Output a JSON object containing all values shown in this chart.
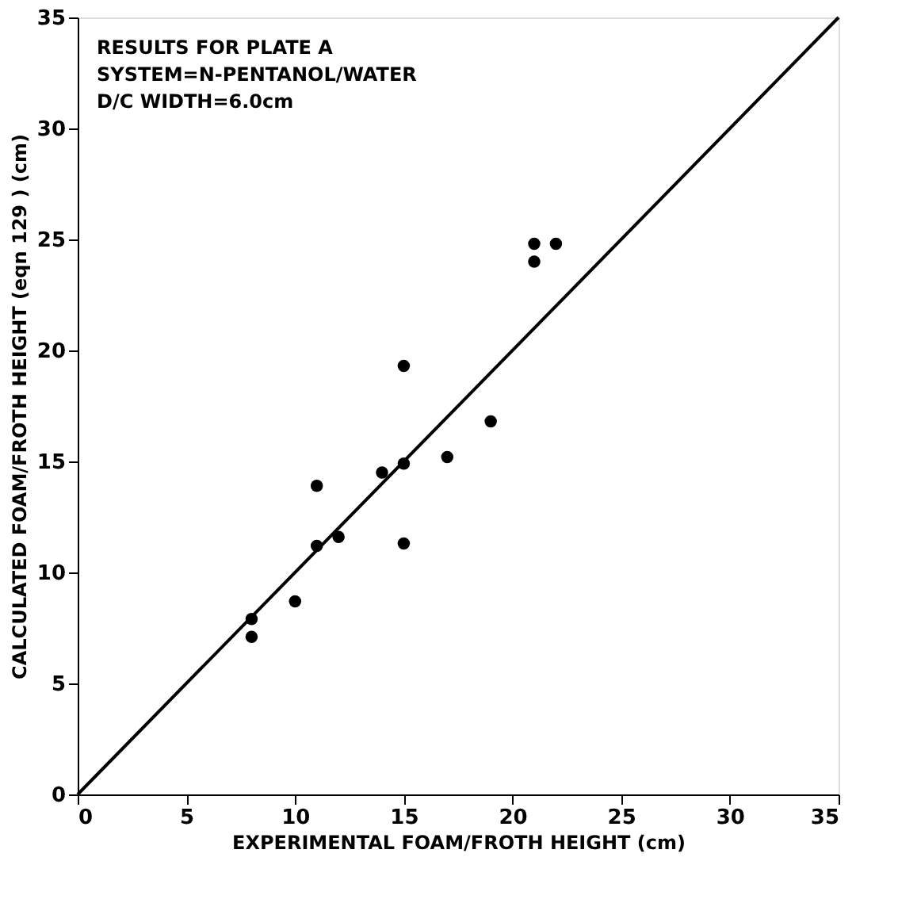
{
  "chart_data": {
    "type": "scatter",
    "xlabel": "EXPERIMENTAL FOAM/FROTH HEIGHT (cm)",
    "ylabel": "CALCULATED FOAM/FROTH HEIGHT (eqn 129 ) (cm)",
    "annotations": [
      "RESULTS FOR PLATE A",
      "SYSTEM=N-PENTANOL/WATER",
      "D/C WIDTH=6.0cm"
    ],
    "xlim": [
      0,
      35
    ],
    "ylim": [
      0,
      35
    ],
    "xticks": [
      0,
      5,
      10,
      15,
      20,
      25,
      30,
      35
    ],
    "yticks": [
      0,
      5,
      10,
      15,
      20,
      25,
      30,
      35
    ],
    "grid": false,
    "series": [
      {
        "color": "#000000",
        "marker": "circle",
        "x": [
          8,
          8,
          10,
          11,
          11,
          12,
          14,
          15,
          15,
          15,
          17,
          19,
          21,
          21,
          22
        ],
        "values": [
          7.9,
          7.1,
          8.7,
          11.2,
          13.9,
          11.6,
          14.5,
          14.9,
          19.3,
          11.3,
          15.2,
          16.8,
          24,
          24.8,
          24.8
        ]
      },
      {
        "type": "line",
        "color": "#000000",
        "line_style": "solid",
        "marker": "none",
        "x": [
          0,
          35
        ],
        "values": [
          0,
          35
        ]
      }
    ]
  }
}
